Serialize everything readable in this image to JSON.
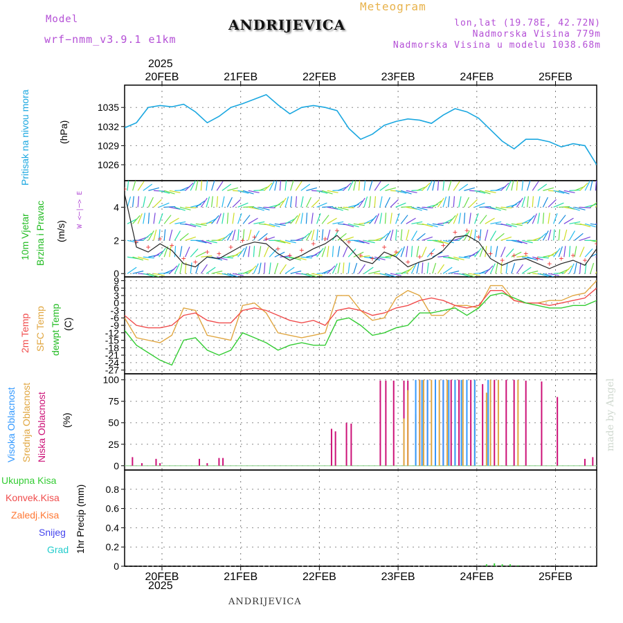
{
  "header": {
    "model_label": "Model",
    "model_name": "wrf−nmm_v3.9.1  e1km",
    "title": "ANDRIJEVICA",
    "meteogram": "Meteogram",
    "lonlat": "lon,lat (19.78E, 42.72N)",
    "altitude": "Nadmorska Visina 779m",
    "model_altitude": "Nadmorska Visina u modelu 1038.68m",
    "watermark": "made by Angel",
    "footer": "ANDRIJEVICA",
    "year_top": "2025",
    "year_bottom": "2025"
  },
  "colors": {
    "pressure": "#1aa7e0",
    "temp2m": "#f04b4b",
    "sfc": "#e0a640",
    "dewpt": "#33cc33",
    "high_cloud": "#3399ff",
    "mid_cloud": "#e0a640",
    "low_cloud": "#cc1177",
    "total_precip": "#33cc33",
    "convective": "#f04b4b",
    "frozen": "#ff7733",
    "snow": "#4444ee",
    "graupel": "#22cccc"
  },
  "chart_data": [
    {
      "type": "line",
      "panel": "pressure",
      "ylabel_main": "Pritisak na nivou mora",
      "unit": "(hPa)",
      "x_ticks": [
        "20FEB",
        "21FEB",
        "22FEB",
        "23FEB",
        "24FEB",
        "25FEB"
      ],
      "ylim": [
        1023.5,
        1038.5
      ],
      "y_ticks": [
        1026,
        1029,
        1032,
        1035
      ],
      "x": [
        0,
        0.15,
        0.3,
        0.45,
        0.6,
        0.75,
        0.9,
        1.05,
        1.2,
        1.35,
        1.5,
        1.65,
        1.8,
        1.95,
        2.1,
        2.25,
        2.4,
        2.55,
        2.7,
        2.85,
        3.0,
        3.15,
        3.3,
        3.45,
        3.6,
        3.75,
        3.9,
        4.05,
        4.2,
        4.35,
        4.5,
        4.65,
        4.8,
        4.95,
        5.1,
        5.25,
        5.4,
        5.55,
        5.7,
        5.85,
        6.0
      ],
      "series": [
        {
          "values": [
            1031.8,
            1032.6,
            1035.0,
            1035.3,
            1035.1,
            1035.5,
            1034.3,
            1032.6,
            1033.6,
            1035.0,
            1035.6,
            1036.3,
            1037.0,
            1035.4,
            1034.0,
            1035.0,
            1035.3,
            1035.0,
            1034.5,
            1031.7,
            1030.0,
            1030.8,
            1032.2,
            1032.8,
            1033.2,
            1033.0,
            1032.5,
            1033.8,
            1034.8,
            1034.3,
            1033.3,
            1031.5,
            1029.7,
            1028.5,
            1030.0,
            1030.0,
            1029.6,
            1028.8,
            1029.3,
            1029.0,
            1026.0
          ]
        }
      ]
    },
    {
      "type": "line",
      "panel": "wind",
      "ylabel_main": "10m Vjetar",
      "ylabel_sub": "Brzina i Pravac",
      "unit": "(m/s)",
      "compass": "W <─|─> E",
      "ylim": [
        -0.2,
        5.6
      ],
      "y_ticks": [
        0,
        2,
        4
      ],
      "x": [
        0,
        0.15,
        0.3,
        0.45,
        0.6,
        0.75,
        0.9,
        1.05,
        1.2,
        1.35,
        1.5,
        1.65,
        1.8,
        1.95,
        2.1,
        2.25,
        2.4,
        2.55,
        2.7,
        2.85,
        3.0,
        3.15,
        3.3,
        3.45,
        3.6,
        3.75,
        3.9,
        4.05,
        4.2,
        4.35,
        4.5,
        4.65,
        4.8,
        4.95,
        5.1,
        5.25,
        5.4,
        5.55,
        5.7,
        5.85,
        6.0
      ],
      "series": [
        {
          "values": [
            4.8,
            1.6,
            1.3,
            1.8,
            1.4,
            0.6,
            0.4,
            1.0,
            0.9,
            1.3,
            1.7,
            1.9,
            1.8,
            1.2,
            0.8,
            1.1,
            1.5,
            1.8,
            2.3,
            1.6,
            0.8,
            0.6,
            1.3,
            1.0,
            0.4,
            0.7,
            0.9,
            1.4,
            2.2,
            2.3,
            1.9,
            0.9,
            0.5,
            0.8,
            0.9,
            0.6,
            0.3,
            0.6,
            0.8,
            0.5,
            1.5
          ]
        }
      ]
    },
    {
      "type": "line",
      "panel": "temperature",
      "ylabel_red": "2m Temp",
      "ylabel_orange": "SFC Temp",
      "ylabel_green": "dewpt Temp",
      "unit": "(C)",
      "ylim": [
        -28.5,
        10.5
      ],
      "y_ticks": [
        -27,
        -24,
        -21,
        -18,
        -15,
        -12,
        -9,
        -6,
        -3,
        0,
        3,
        6,
        9
      ],
      "x": [
        0,
        0.15,
        0.3,
        0.45,
        0.6,
        0.75,
        0.9,
        1.05,
        1.2,
        1.35,
        1.5,
        1.65,
        1.8,
        1.95,
        2.1,
        2.25,
        2.4,
        2.55,
        2.7,
        2.85,
        3.0,
        3.15,
        3.3,
        3.45,
        3.6,
        3.75,
        3.9,
        4.05,
        4.2,
        4.35,
        4.5,
        4.65,
        4.8,
        4.95,
        5.1,
        5.25,
        5.4,
        5.55,
        5.7,
        5.85,
        6.0
      ],
      "series": [
        {
          "name": "2m Temp",
          "values": [
            -5,
            -9,
            -10,
            -10,
            -9,
            -5,
            -4,
            -7,
            -8,
            -8,
            -3,
            -2,
            -3,
            -5,
            -7,
            -8,
            -7,
            -9,
            -3,
            -2,
            -3,
            -5,
            -4,
            -2,
            -1,
            1,
            2,
            1,
            -1,
            -2,
            -1,
            5,
            5,
            1,
            0,
            0,
            -1,
            0,
            1,
            2,
            6
          ]
        },
        {
          "name": "SFC Temp",
          "values": [
            -6,
            -14,
            -15,
            -16,
            -13,
            -2,
            -3,
            -13,
            -14,
            -15,
            -1,
            0,
            -4,
            -12,
            -13,
            -14,
            -13,
            -12,
            3,
            3,
            -3,
            -7,
            -6,
            2,
            5,
            3,
            -5,
            -5,
            -1,
            -1,
            -2,
            7,
            7,
            1,
            0,
            0,
            1,
            1,
            3,
            4,
            9
          ]
        },
        {
          "name": "dewpt Temp",
          "values": [
            -11,
            -17,
            -20,
            -23,
            -25,
            -15,
            -14,
            -19,
            -21,
            -19,
            -12,
            -14,
            -16,
            -19,
            -17,
            -16,
            -17,
            -17,
            -7,
            -6,
            -9,
            -13,
            -12,
            -10,
            -9,
            -4,
            -4,
            -3,
            -2,
            -5,
            -2,
            3,
            4,
            2,
            0,
            -1,
            -2,
            -2,
            -1,
            -1,
            1
          ]
        }
      ]
    },
    {
      "type": "bar",
      "panel": "cloud",
      "ylabel_blue": "Visoka Oblacnost",
      "ylabel_orange": "Srednja Oblacnost",
      "ylabel_magenta": "Niska Oblacnost",
      "unit": "(%)",
      "ylim": [
        -5,
        107
      ],
      "y_ticks": [
        0,
        25,
        50,
        75,
        100
      ],
      "series": [
        {
          "name": "Niska Oblacnost",
          "points": [
            [
              0.1,
              10
            ],
            [
              0.22,
              3
            ],
            [
              0.4,
              8
            ],
            [
              0.45,
              3
            ],
            [
              0.95,
              8
            ],
            [
              1.05,
              3
            ],
            [
              1.2,
              9
            ],
            [
              1.25,
              9
            ],
            [
              2.63,
              43
            ],
            [
              2.68,
              40
            ],
            [
              2.82,
              50
            ],
            [
              2.88,
              49
            ],
            [
              3.25,
              99
            ],
            [
              3.32,
              99
            ],
            [
              3.42,
              99
            ],
            [
              3.55,
              99
            ],
            [
              3.6,
              99
            ],
            [
              3.75,
              100
            ],
            [
              3.85,
              100
            ],
            [
              3.95,
              100
            ],
            [
              4.05,
              100
            ],
            [
              4.15,
              100
            ],
            [
              4.25,
              100
            ],
            [
              4.4,
              100
            ],
            [
              4.55,
              95
            ],
            [
              4.7,
              100
            ],
            [
              4.85,
              100
            ],
            [
              4.95,
              100
            ],
            [
              5.1,
              99
            ],
            [
              5.3,
              98
            ],
            [
              5.5,
              80
            ],
            [
              5.85,
              8
            ],
            [
              5.95,
              10
            ]
          ]
        },
        {
          "name": "Srednja Oblacnost",
          "points": [
            [
              3.55,
              55
            ],
            [
              3.6,
              88
            ],
            [
              3.7,
              60
            ],
            [
              3.75,
              100
            ],
            [
              3.8,
              100
            ],
            [
              3.9,
              100
            ],
            [
              4.0,
              100
            ],
            [
              4.1,
              100
            ],
            [
              4.2,
              100
            ],
            [
              4.3,
              100
            ],
            [
              4.45,
              100
            ],
            [
              4.6,
              85
            ],
            [
              4.65,
              100
            ],
            [
              4.75,
              100
            ],
            [
              5.0,
              100
            ]
          ]
        },
        {
          "name": "Visoka Oblacnost",
          "points": [
            [
              3.7,
              100
            ],
            [
              3.78,
              100
            ],
            [
              3.85,
              100
            ],
            [
              3.95,
              100
            ],
            [
              4.05,
              100
            ],
            [
              4.12,
              100
            ],
            [
              4.2,
              100
            ],
            [
              4.28,
              100
            ],
            [
              4.35,
              100
            ],
            [
              4.45,
              100
            ],
            [
              4.62,
              100
            ]
          ]
        }
      ]
    },
    {
      "type": "bar",
      "panel": "precip",
      "ylabel_main": "1hr Precip (mm)",
      "ylim": [
        0,
        1
      ],
      "y_ticks": [
        0,
        0.2,
        0.4,
        0.6,
        0.8
      ],
      "x_ticks": [
        "20FEB",
        "21FEB",
        "22FEB",
        "23FEB",
        "24FEB",
        "25FEB"
      ],
      "legend": [
        "Ukupna Kisa",
        "Konvek.Kisa",
        "Zaledj.Kisa",
        "Snijeg",
        "Grad"
      ],
      "series": [
        {
          "name": "Ukupna Kisa",
          "points": [
            [
              4.6,
              0.02
            ],
            [
              4.7,
              0.03
            ],
            [
              4.8,
              0.02
            ],
            [
              4.9,
              0.02
            ],
            [
              5.0,
              0.01
            ]
          ]
        }
      ]
    }
  ]
}
